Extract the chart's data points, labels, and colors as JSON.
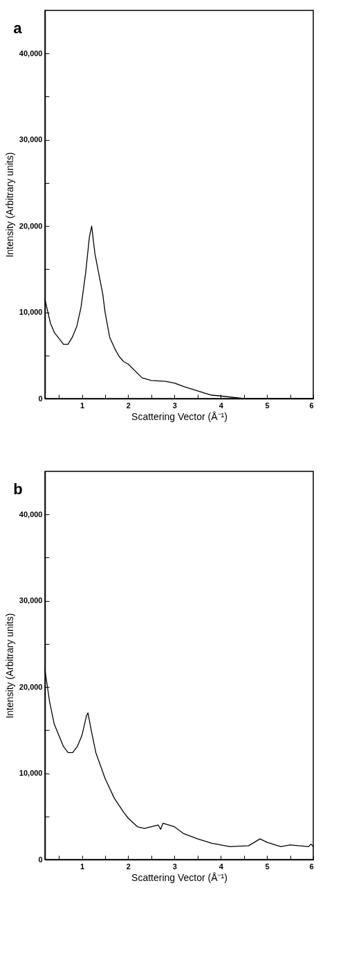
{
  "chart_data": [
    {
      "type": "line",
      "title": "a",
      "xlabel": "Scattering Vector (Å⁻¹)",
      "ylabel": "Intensity (Arbitrary units)",
      "xlim": [
        0.2,
        6
      ],
      "ylim": [
        0,
        45000
      ],
      "xticks": [
        {
          "value": 0.5,
          "label": null
        },
        1,
        {
          "value": 1.5,
          "label": null
        },
        2,
        {
          "value": 2.5,
          "label": null
        },
        3,
        {
          "value": 3.5,
          "label": null
        },
        4,
        {
          "value": 4.5,
          "label": null
        },
        5,
        {
          "value": 5.5,
          "label": null
        },
        6
      ],
      "yticks": [
        0,
        {
          "value": 5000,
          "label": null
        },
        {
          "value": 10000,
          "label": "10,000"
        },
        {
          "value": 15000,
          "label": null
        },
        {
          "value": 20000,
          "label": "20,000"
        },
        {
          "value": 25000,
          "label": null
        },
        {
          "value": 30000,
          "label": "30,000"
        },
        {
          "value": 35000,
          "label": null
        },
        {
          "value": 40000,
          "label": "40,000"
        }
      ],
      "grid": false,
      "series": [
        {
          "color": "#000000",
          "x": [
            0.2,
            0.32,
            0.41,
            0.5,
            0.6,
            0.7,
            0.79,
            0.89,
            0.98,
            1.08,
            1.16,
            1.21,
            1.28,
            1.37,
            1.45,
            1.5,
            1.6,
            1.7,
            1.8,
            1.9,
            2.0,
            2.3,
            2.5,
            2.8,
            3.0,
            3.2,
            3.5,
            3.8,
            4.0,
            4.5,
            5.0,
            6.0
          ],
          "values": [
            11500,
            8700,
            7600,
            7000,
            6300,
            6300,
            7100,
            8400,
            10600,
            14600,
            18700,
            20000,
            16800,
            14300,
            12100,
            10000,
            7100,
            5900,
            4900,
            4300,
            4000,
            2400,
            2100,
            2000,
            1800,
            1400,
            900,
            400,
            300,
            0,
            0,
            0
          ]
        }
      ]
    },
    {
      "type": "line",
      "title": "b",
      "xlabel": "Scattering Vector (Å⁻¹)",
      "ylabel": "Intensity (Arbitrary units)",
      "xlim": [
        0.2,
        6
      ],
      "ylim": [
        0,
        45000
      ],
      "xticks": [
        {
          "value": 0.5,
          "label": null
        },
        1,
        {
          "value": 1.5,
          "label": null
        },
        2,
        {
          "value": 2.5,
          "label": null
        },
        3,
        {
          "value": 3.5,
          "label": null
        },
        4,
        {
          "value": 4.5,
          "label": null
        },
        5,
        {
          "value": 5.5,
          "label": null
        },
        6
      ],
      "yticks": [
        0,
        {
          "value": 5000,
          "label": null
        },
        {
          "value": 10000,
          "label": "10,000"
        },
        {
          "value": 15000,
          "label": null
        },
        {
          "value": 20000,
          "label": "20,000"
        },
        {
          "value": 25000,
          "label": null
        },
        {
          "value": 30000,
          "label": "30,000"
        },
        {
          "value": 35000,
          "label": null
        },
        {
          "value": 40000,
          "label": "40,000"
        }
      ],
      "grid": false,
      "series": [
        {
          "color": "#000000",
          "x": [
            0.2,
            0.3,
            0.4,
            0.5,
            0.6,
            0.7,
            0.8,
            0.9,
            1.0,
            1.1,
            1.13,
            1.2,
            1.3,
            1.5,
            1.7,
            1.9,
            2.0,
            2.2,
            2.35,
            2.5,
            2.65,
            2.7,
            2.75,
            3.0,
            3.2,
            3.5,
            3.8,
            4.2,
            4.6,
            4.85,
            5.0,
            5.3,
            5.5,
            5.9,
            5.95,
            6.0
          ],
          "values": [
            22000,
            18300,
            15700,
            14400,
            13100,
            12400,
            12400,
            13100,
            14400,
            16700,
            17000,
            15000,
            12400,
            9400,
            7100,
            5500,
            4800,
            3800,
            3600,
            3800,
            4000,
            3500,
            4200,
            3800,
            3000,
            2400,
            1900,
            1500,
            1600,
            2400,
            2000,
            1500,
            1700,
            1500,
            1800,
            1500
          ]
        }
      ]
    }
  ]
}
